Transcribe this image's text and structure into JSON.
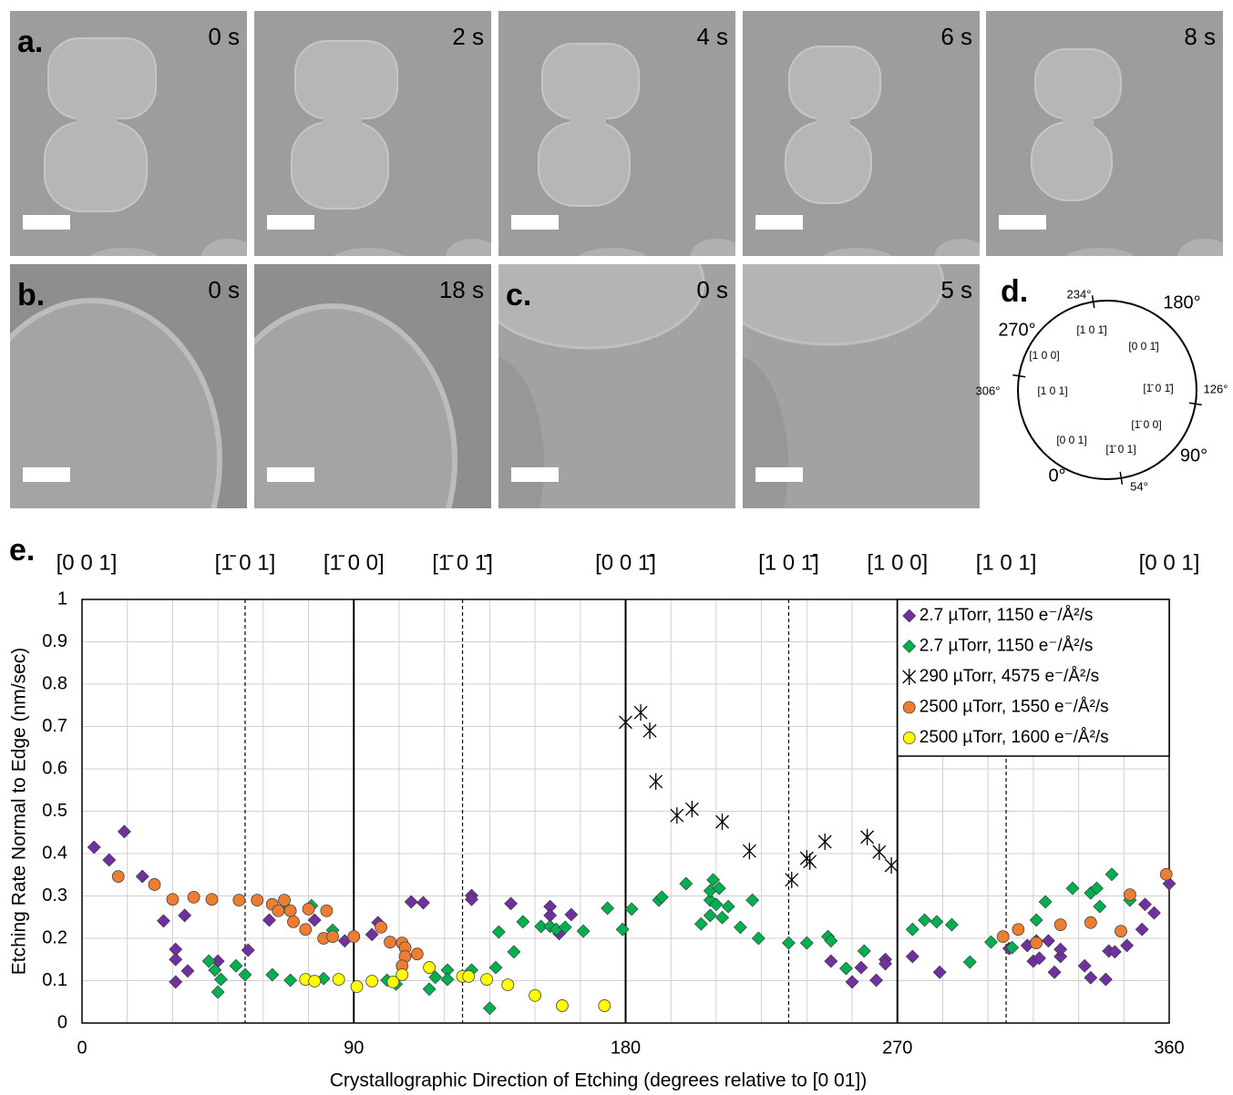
{
  "panels": {
    "a": {
      "label": "a.",
      "frames": [
        "0 s",
        "2 s",
        "4 s",
        "6 s",
        "8 s"
      ]
    },
    "b": {
      "label": "b.",
      "frames": [
        "0 s",
        "18 s"
      ]
    },
    "c": {
      "label": "c.",
      "frames": [
        "0 s",
        "5 s"
      ]
    },
    "d": {
      "label": "d.",
      "angles": [
        "0°",
        "54°",
        "90°",
        "126°",
        "180°",
        "234°",
        "270°",
        "306°"
      ],
      "directions": [
        "[0 0 1]",
        "[1̄ 0 1]",
        "[1̄ 0 0]",
        "[1̄ 0 1̄]",
        "[0 0 1̄]",
        "[1 0 1̄]",
        "[1 0 0]",
        "[1 0 1]"
      ]
    }
  },
  "chart_data": {
    "type": "scatter",
    "panel_label": "e.",
    "xlabel": "Crystallographic Direction of Etching (degrees relative to [0 01])",
    "ylabel": "Etching Rate Normal to Edge (nm/sec)",
    "xlim": [
      0,
      360
    ],
    "ylim": [
      0,
      1
    ],
    "xticks": [
      0,
      90,
      180,
      270,
      360
    ],
    "yticks": [
      0,
      0.1,
      0.2,
      0.3,
      0.4,
      0.5,
      0.6,
      0.7,
      0.8,
      0.9,
      1
    ],
    "x_minor_ticks": [
      15,
      30,
      45,
      60,
      75,
      105,
      120,
      135,
      150,
      165,
      195,
      210,
      225,
      240,
      255,
      285,
      300,
      315,
      330,
      345
    ],
    "solid_lines": [
      90,
      180,
      270
    ],
    "dashed_lines": [
      54,
      126,
      234,
      306
    ],
    "x2ticks": [
      {
        "value": 0,
        "label": "[0 0 1]"
      },
      {
        "value": 54,
        "label": "[1̄ 0 1]"
      },
      {
        "value": 90,
        "label": "[1̄ 0 0]"
      },
      {
        "value": 126,
        "label": "[1̄ 0 1̄]"
      },
      {
        "value": 180,
        "label": "[0 0 1̄]"
      },
      {
        "value": 234,
        "label": "[1 0 1̄]"
      },
      {
        "value": 270,
        "label": "[1 0 0]"
      },
      {
        "value": 306,
        "label": "[1 0 1]"
      },
      {
        "value": 360,
        "label": "[0 0 1]"
      }
    ],
    "grid": true,
    "legend": "upper right",
    "series": [
      {
        "name": "2.7 µTorr, 1150 e⁻/Å²/s",
        "color": "#7030a0",
        "marker": "diamond",
        "x": [
          4,
          9,
          14,
          20,
          27,
          31,
          31,
          31,
          34,
          35,
          45,
          55,
          62,
          77,
          87,
          96,
          98,
          109,
          113,
          129,
          129,
          142,
          155,
          155,
          158,
          162,
          248,
          255,
          258,
          263,
          266,
          266,
          275,
          284,
          307,
          313,
          315,
          316,
          317,
          320,
          322,
          324,
          324,
          332,
          334,
          339,
          340,
          342,
          346,
          351,
          352,
          355,
          360
        ],
        "values": [
          0.415,
          0.385,
          0.452,
          0.346,
          0.241,
          0.174,
          0.15,
          0.097,
          0.254,
          0.123,
          0.146,
          0.172,
          0.243,
          0.243,
          0.194,
          0.209,
          0.237,
          0.286,
          0.284,
          0.301,
          0.292,
          0.282,
          0.275,
          0.254,
          0.211,
          0.256,
          0.146,
          0.097,
          0.131,
          0.101,
          0.15,
          0.14,
          0.157,
          0.12,
          0.176,
          0.183,
          0.146,
          0.194,
          0.153,
          0.194,
          0.12,
          0.157,
          0.174,
          0.135,
          0.107,
          0.103,
          0.17,
          0.168,
          0.183,
          0.221,
          0.28,
          0.26,
          0.329
        ]
      },
      {
        "name": "2.7 µTorr, 1150 e⁻/Å²/s",
        "color": "#00b050",
        "marker": "diamond",
        "x": [
          42,
          44,
          45,
          46,
          51,
          54,
          63,
          68,
          69,
          76,
          80,
          83,
          101,
          104,
          115,
          117,
          121,
          121,
          129,
          135,
          137,
          138,
          143,
          146,
          152,
          155,
          157,
          160,
          166,
          174,
          179,
          182,
          191,
          192,
          200,
          205,
          208,
          208,
          208,
          209,
          210,
          211,
          212,
          214,
          218,
          222,
          224,
          234,
          240,
          247,
          248,
          253,
          259,
          275,
          279,
          283,
          288,
          294,
          301,
          308,
          316,
          319,
          328,
          334,
          336,
          337,
          341,
          347
        ],
        "values": [
          0.146,
          0.125,
          0.073,
          0.103,
          0.135,
          0.114,
          0.114,
          0.269,
          0.101,
          0.277,
          0.105,
          0.219,
          0.101,
          0.092,
          0.08,
          0.108,
          0.125,
          0.103,
          0.125,
          0.035,
          0.131,
          0.215,
          0.168,
          0.239,
          0.228,
          0.228,
          0.221,
          0.226,
          0.217,
          0.271,
          0.221,
          0.269,
          0.29,
          0.297,
          0.329,
          0.234,
          0.254,
          0.29,
          0.312,
          0.338,
          0.28,
          0.318,
          0.249,
          0.275,
          0.226,
          0.29,
          0.2,
          0.189,
          0.189,
          0.204,
          0.194,
          0.129,
          0.17,
          0.221,
          0.243,
          0.239,
          0.232,
          0.144,
          0.191,
          0.178,
          0.243,
          0.286,
          0.318,
          0.307,
          0.318,
          0.275,
          0.351,
          0.29
        ]
      },
      {
        "name": "290 µTorr, 4575 e⁻/Å²/s",
        "color": "#000000",
        "marker": "asterisk",
        "x": [
          180,
          185,
          188,
          190,
          197,
          202,
          212,
          221,
          235,
          240,
          241,
          246,
          260,
          264,
          268
        ],
        "values": [
          0.71,
          0.733,
          0.69,
          0.57,
          0.49,
          0.505,
          0.475,
          0.406,
          0.338,
          0.389,
          0.381,
          0.428,
          0.439,
          0.404,
          0.372
        ]
      },
      {
        "name": "2500 µTorr, 1550 e⁻/Å²/s",
        "color": "#ed7d31",
        "marker": "circle",
        "x": [
          12,
          24,
          30,
          37,
          43,
          52,
          58,
          63,
          65,
          67,
          69,
          70,
          74,
          75,
          81,
          80,
          83,
          90,
          99,
          102,
          106,
          107,
          107,
          111,
          106,
          305,
          310,
          316,
          324,
          334,
          344,
          347,
          359
        ],
        "values": [
          0.346,
          0.327,
          0.292,
          0.297,
          0.292,
          0.29,
          0.29,
          0.28,
          0.265,
          0.29,
          0.265,
          0.239,
          0.221,
          0.269,
          0.265,
          0.2,
          0.204,
          0.204,
          0.226,
          0.191,
          0.189,
          0.178,
          0.157,
          0.163,
          0.135,
          0.204,
          0.221,
          0.189,
          0.232,
          0.237,
          0.217,
          0.303,
          0.351
        ]
      },
      {
        "name": "2500 µTorr, 1600 e⁻/Å²/s",
        "color": "#ffff00",
        "marker": "circle",
        "x": [
          74,
          77,
          85,
          91,
          96,
          103,
          106,
          115,
          126,
          128,
          134,
          141,
          150,
          159,
          173
        ],
        "values": [
          0.103,
          0.099,
          0.103,
          0.086,
          0.099,
          0.097,
          0.114,
          0.131,
          0.11,
          0.11,
          0.103,
          0.09,
          0.065,
          0.041,
          0.041
        ]
      }
    ]
  }
}
